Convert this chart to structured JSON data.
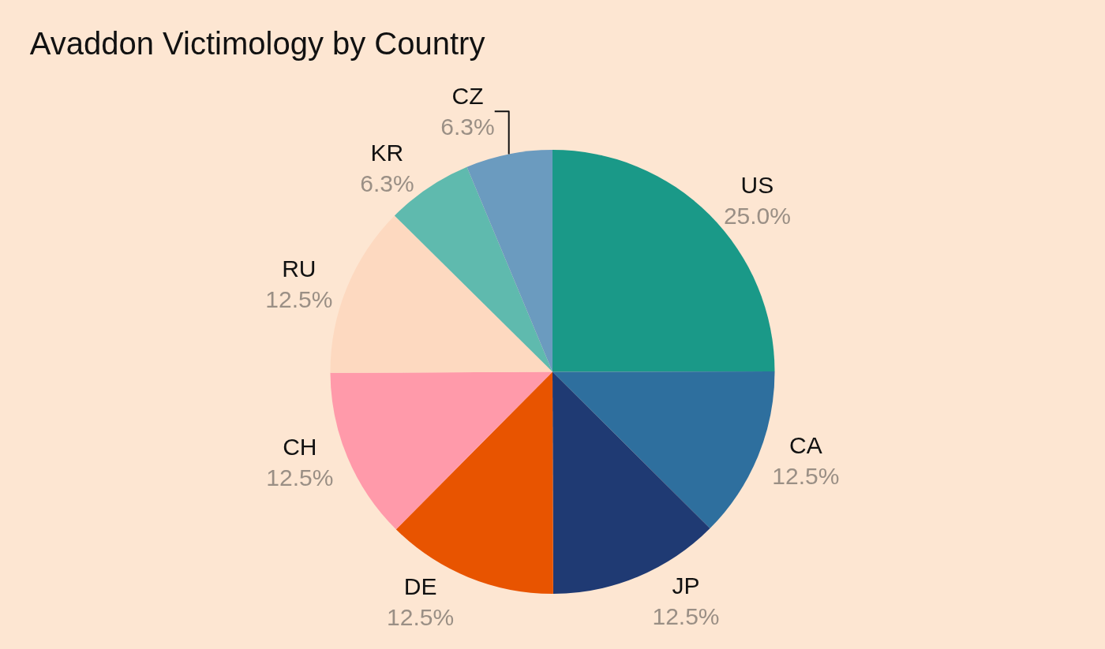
{
  "chart_data": {
    "type": "pie",
    "title": "Avaddon Victimology by Country",
    "categories": [
      "US",
      "CA",
      "JP",
      "DE",
      "CH",
      "RU",
      "KR",
      "CZ"
    ],
    "values": [
      25.0,
      12.5,
      12.5,
      12.5,
      12.5,
      12.5,
      6.3,
      6.3
    ],
    "value_labels": [
      "25.0%",
      "12.5%",
      "12.5%",
      "12.5%",
      "12.5%",
      "12.5%",
      "6.3%",
      "6.3%"
    ],
    "colors": [
      "#1a9988",
      "#2e6f9e",
      "#1f3a73",
      "#e85400",
      "#ff9aaa",
      "#fdd9c0",
      "#5fbaae",
      "#6b9bbf"
    ],
    "legend": false
  }
}
